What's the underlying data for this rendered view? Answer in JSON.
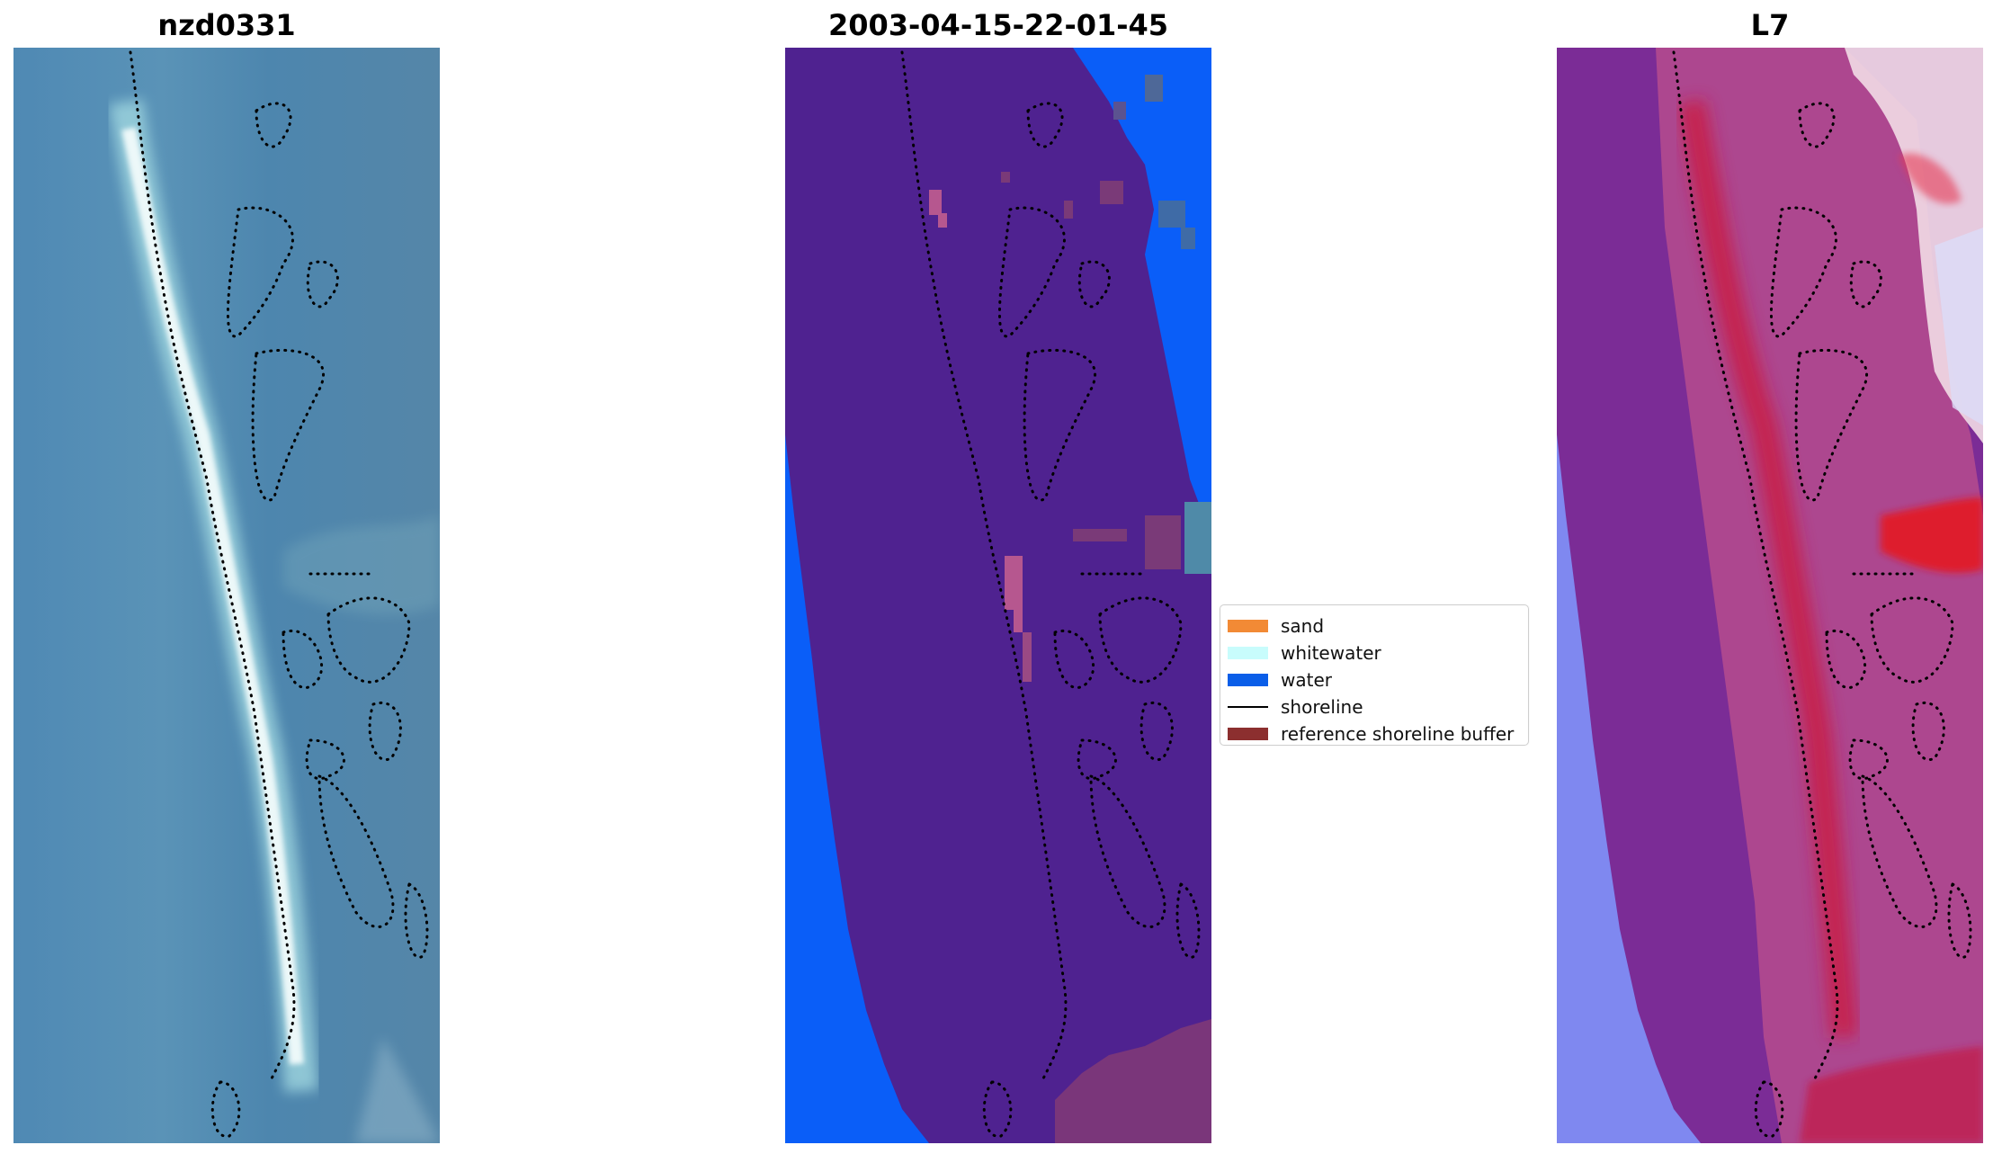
{
  "panels": [
    {
      "title": "nzd0331"
    },
    {
      "title": "2003-04-15-22-01-45"
    },
    {
      "title": "L7"
    }
  ],
  "legend": {
    "items": [
      {
        "label": "sand",
        "color": "#f28a35",
        "kind": "patch"
      },
      {
        "label": "whitewater",
        "color": "#c8fcfc",
        "kind": "patch"
      },
      {
        "label": "water",
        "color": "#0a5ee8",
        "kind": "patch"
      },
      {
        "label": "shoreline",
        "color": "#000000",
        "kind": "line"
      },
      {
        "label": "reference shoreline buffer",
        "color": "#8c2f2f",
        "kind": "patch"
      }
    ]
  },
  "colors": {
    "water_blue": "#0a5ef8",
    "land_purple": "#4f2290",
    "rgb_water": "#4f86ad",
    "l7_red": "#c51f52",
    "l7_purple": "#7b2c96",
    "l7_blue": "#7a82f2"
  }
}
